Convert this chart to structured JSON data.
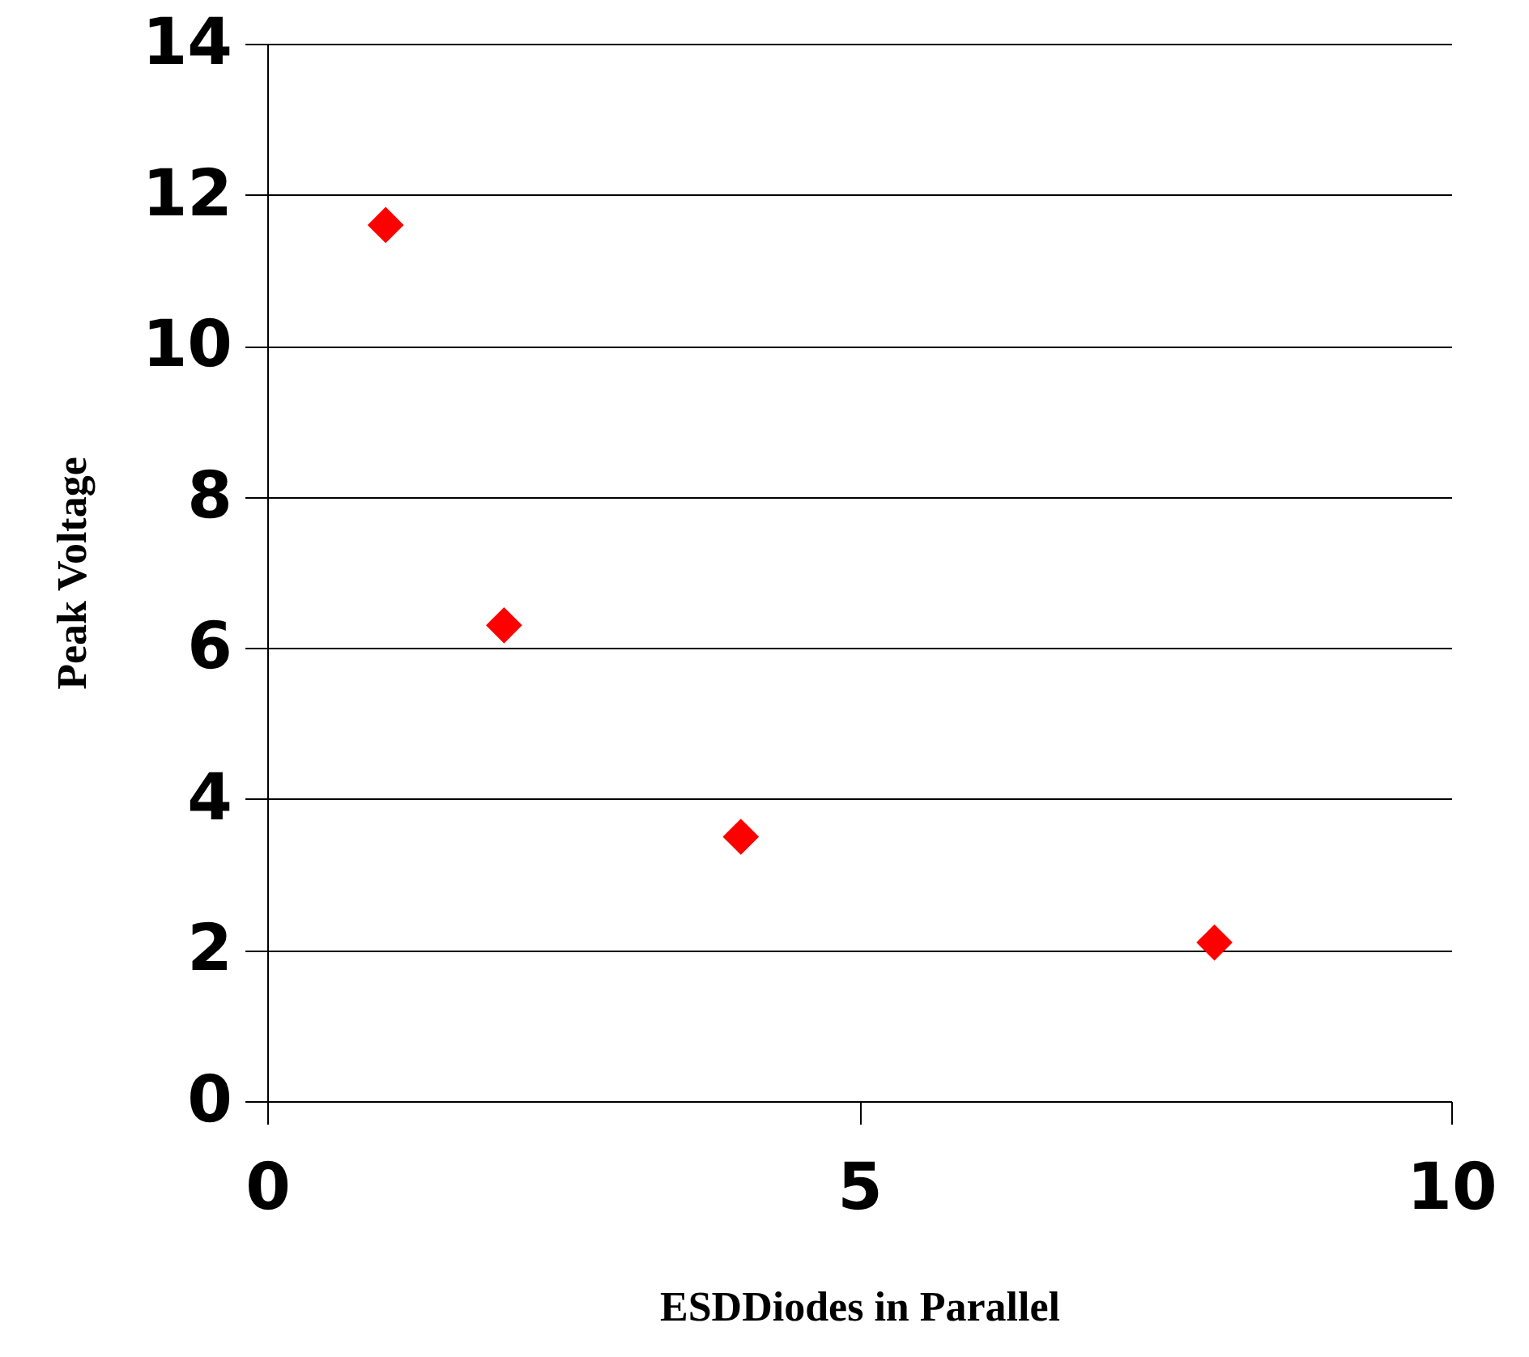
{
  "chart_data": {
    "type": "scatter",
    "xlabel": "ESDDiodes in Parallel",
    "ylabel": "Peak Voltage",
    "x": [
      1,
      2,
      4,
      8
    ],
    "series": [
      {
        "color": "#ff0000",
        "values": [
          11.6,
          6.3,
          3.5,
          2.1
        ]
      }
    ],
    "marker": "diamond",
    "grid": "y",
    "xlim": [
      0,
      10
    ],
    "xticks": [
      0,
      5,
      10
    ],
    "ylim": [
      0,
      14
    ],
    "yticks": [
      0,
      2,
      4,
      6,
      8,
      10,
      12,
      14
    ]
  }
}
